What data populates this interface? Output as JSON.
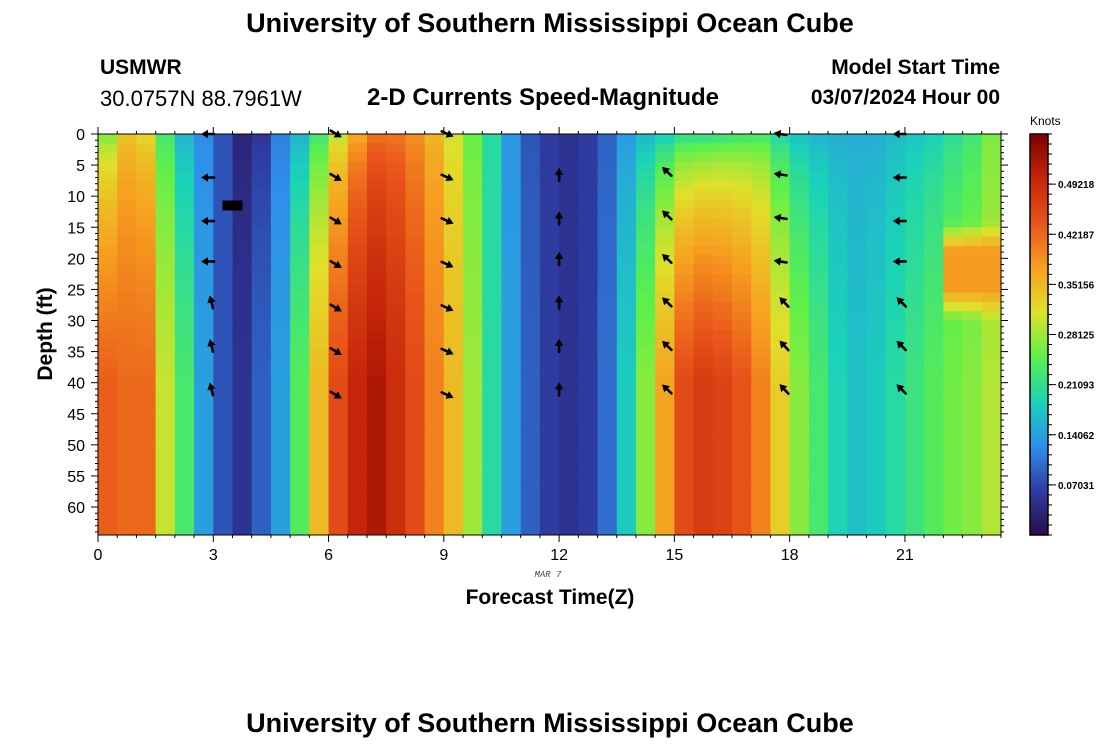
{
  "header": {
    "title": "University of Southern Mississippi Ocean Cube",
    "station": "USMWR",
    "coordinates": "30.0757N  88.7961W",
    "subtitle": "2-D Currents Speed-Magnitude",
    "model_start_label": "Model Start Time",
    "model_start_value": "03/07/2024 Hour 00",
    "footer_title": "University of Southern Mississippi Ocean Cube"
  },
  "chart_data": {
    "type": "heatmap",
    "title": "2-D Currents Speed-Magnitude",
    "xlabel": "Forecast Time(Z)",
    "ylabel": "Depth (ft)",
    "date_annotation": "MAR 7",
    "xlim": [
      0,
      23.5
    ],
    "ylim": [
      0,
      64.5
    ],
    "xticks": [
      0,
      3,
      6,
      9,
      12,
      15,
      18,
      21
    ],
    "yticks": [
      0,
      5,
      10,
      15,
      20,
      25,
      30,
      35,
      40,
      45,
      50,
      55,
      60
    ],
    "colorbar": {
      "label": "Knots",
      "min": 0.0,
      "max": 0.5625,
      "ticks": [
        "0.07031",
        "0.14062",
        "0.21093",
        "0.28125",
        "0.35156",
        "0.42187",
        "0.49218"
      ],
      "tick_values": [
        0.07031,
        0.14062,
        0.21093,
        0.28125,
        0.35156,
        0.42187,
        0.49218
      ],
      "colors": [
        "#2a0b4a",
        "#2e3da3",
        "#2f8fea",
        "#1ad3b8",
        "#5ef04a",
        "#e0e02a",
        "#f7a020",
        "#e8541a",
        "#c5250a",
        "#7d0000"
      ]
    },
    "hours": [
      0,
      0.5,
      1,
      1.5,
      2,
      2.5,
      3,
      3.5,
      4,
      4.5,
      5,
      5.5,
      6,
      6.5,
      7,
      7.5,
      8,
      8.5,
      9,
      9.5,
      10,
      10.5,
      11,
      11.5,
      12,
      12.5,
      13,
      13.5,
      14,
      14.5,
      15,
      15.5,
      16,
      16.5,
      17,
      17.5,
      18,
      18.5,
      19,
      19.5,
      20,
      20.5,
      21,
      21.5,
      22,
      22.5,
      23
    ],
    "surface_speed": [
      0.25,
      0.33,
      0.31,
      0.22,
      0.15,
      0.12,
      0.08,
      0.03,
      0.05,
      0.11,
      0.15,
      0.21,
      0.28,
      0.35,
      0.4,
      0.4,
      0.38,
      0.35,
      0.3,
      0.25,
      0.2,
      0.13,
      0.08,
      0.06,
      0.05,
      0.06,
      0.09,
      0.13,
      0.15,
      0.16,
      0.18,
      0.18,
      0.19,
      0.2,
      0.21,
      0.18,
      0.16,
      0.15,
      0.15,
      0.15,
      0.15,
      0.16,
      0.17,
      0.18,
      0.2,
      0.22,
      0.26
    ],
    "bottom_speed": [
      0.43,
      0.42,
      0.42,
      0.3,
      0.23,
      0.14,
      0.08,
      0.05,
      0.09,
      0.14,
      0.24,
      0.35,
      0.45,
      0.5,
      0.52,
      0.49,
      0.45,
      0.4,
      0.35,
      0.28,
      0.2,
      0.14,
      0.09,
      0.06,
      0.05,
      0.06,
      0.1,
      0.18,
      0.27,
      0.37,
      0.45,
      0.47,
      0.46,
      0.44,
      0.4,
      0.33,
      0.27,
      0.23,
      0.19,
      0.17,
      0.18,
      0.2,
      0.22,
      0.24,
      0.26,
      0.27,
      0.29
    ],
    "hot_spot": {
      "hour_range": [
        22.2,
        23.5
      ],
      "depth_range": [
        14,
        30
      ],
      "speed": 0.38
    },
    "vectors": [
      {
        "hour": 2.85,
        "u": -1,
        "v": 0,
        "depths": [
          0,
          7,
          14,
          20.5
        ]
      },
      {
        "hour": 2.95,
        "u": -0.25,
        "v": 1,
        "depths": [
          27,
          34,
          41
        ]
      },
      {
        "hour": 6.2,
        "u": 1,
        "v": -0.6,
        "depths": [
          0,
          7,
          14,
          21,
          28,
          35,
          42
        ]
      },
      {
        "hour": 9.1,
        "u": 1,
        "v": -0.45,
        "depths": [
          0,
          7,
          14,
          21,
          28,
          35,
          42
        ]
      },
      {
        "hour": 12.0,
        "u": 0,
        "v": 1,
        "depths": [
          6.5,
          13.5,
          20,
          27,
          34,
          41
        ]
      },
      {
        "hour": 14.8,
        "u": -0.8,
        "v": 0.75,
        "depths": [
          6,
          13,
          20,
          27,
          34,
          41
        ]
      },
      {
        "hour": 17.75,
        "u": -1,
        "v": 0.15,
        "depths": [
          0,
          6.5,
          13.5,
          20.5
        ]
      },
      {
        "hour": 17.85,
        "u": -0.7,
        "v": 0.75,
        "depths": [
          27,
          34,
          41
        ]
      },
      {
        "hour": 20.85,
        "u": -1,
        "v": 0,
        "depths": [
          0,
          7,
          14,
          20.5
        ]
      },
      {
        "hour": 20.9,
        "u": -0.75,
        "v": 0.75,
        "depths": [
          27,
          34,
          41
        ]
      }
    ],
    "marker": {
      "hour": 3.5,
      "depth": 11.5
    }
  }
}
